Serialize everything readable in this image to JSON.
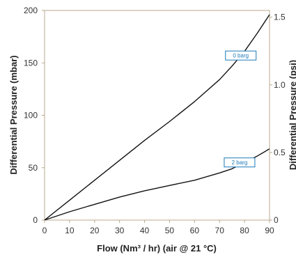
{
  "chart_data": {
    "type": "line",
    "xlabel": "Flow (Nm³ / hr) (air @ 21 °C)",
    "ylabel": "Differential Pressure (mbar)",
    "y2label": "Differential Pressure (psi)",
    "xlim": [
      0,
      90
    ],
    "ylim": [
      0,
      200
    ],
    "y2lim": [
      0,
      1.55
    ],
    "xticks": [
      "0",
      "10",
      "20",
      "30",
      "40",
      "50",
      "60",
      "70",
      "80",
      "90"
    ],
    "yticks": [
      "0",
      "50",
      "100",
      "150",
      "200"
    ],
    "y2ticks": [
      "0",
      "0.5",
      "1.0",
      "1.5"
    ],
    "grid": false,
    "series": [
      {
        "name": "0 barg",
        "x": [
          0,
          10,
          20,
          30,
          40,
          50,
          60,
          70,
          75,
          80,
          85,
          90
        ],
        "y": [
          0,
          19,
          38,
          57,
          76,
          94,
          113,
          134,
          147,
          161,
          178,
          196
        ],
        "color": "#111111"
      },
      {
        "name": "2 barg",
        "x": [
          0,
          10,
          20,
          30,
          40,
          50,
          60,
          70,
          75,
          80,
          85,
          90
        ],
        "y": [
          0,
          8,
          15,
          22,
          28,
          33,
          38,
          45,
          49,
          55,
          61,
          68
        ],
        "color": "#111111"
      }
    ],
    "callout_color": "#1a7ab8"
  }
}
